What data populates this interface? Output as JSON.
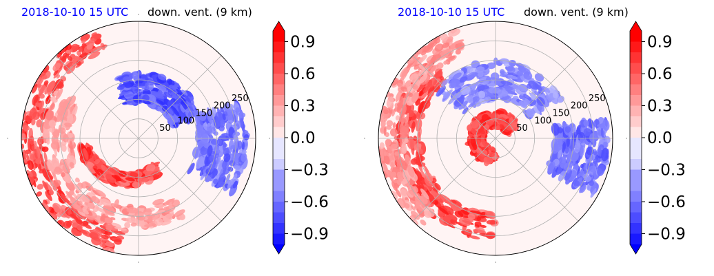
{
  "chart_data": [
    {
      "type": "heatmap",
      "projection": "polar",
      "title_left": "2018-10-10 15 UTC",
      "title_right": "down. vent. (9 km)",
      "radial_ticks": [
        50,
        100,
        150,
        200,
        250
      ],
      "radial_max": 300,
      "colorbar": {
        "min": -1.0,
        "max": 1.0,
        "ticks": [
          0.9,
          0.6,
          0.3,
          0.0,
          -0.3,
          -0.6,
          -0.9
        ],
        "tick_labels": [
          "0.9",
          "0.6",
          "0.3",
          "0.0",
          "−0.3",
          "−0.6",
          "−0.9"
        ],
        "extend": "both",
        "colors": {
          "low": "#0000ff",
          "mid": "#ffffff",
          "high": "#ff0000"
        }
      },
      "pattern": {
        "features": [
          {
            "kind": "spiral",
            "value": 0.95,
            "r0": 90,
            "r1": 140,
            "theta0": 300,
            "theta1": 190
          },
          {
            "kind": "band",
            "value": 0.9,
            "r0": 240,
            "r1": 300,
            "theta0": 110,
            "theta1": 260
          },
          {
            "kind": "band",
            "value": 0.5,
            "r0": 170,
            "r1": 240,
            "theta0": 150,
            "theta1": 300
          },
          {
            "kind": "band",
            "value": -0.85,
            "r0": 90,
            "r1": 170,
            "theta0": 20,
            "theta1": 110
          },
          {
            "kind": "band",
            "value": -0.7,
            "r0": 150,
            "r1": 280,
            "theta0": 330,
            "theta1": 380
          }
        ]
      }
    },
    {
      "type": "heatmap",
      "projection": "polar",
      "title_left": "2018-10-10 15 UTC",
      "title_right": "down. vent. (9 km)",
      "radial_ticks": [
        50,
        100,
        150,
        200,
        250
      ],
      "radial_max": 300,
      "colorbar": {
        "min": -1.0,
        "max": 1.0,
        "ticks": [
          0.9,
          0.6,
          0.3,
          0.0,
          -0.3,
          -0.6,
          -0.9
        ],
        "tick_labels": [
          "0.9",
          "0.6",
          "0.3",
          "0.0",
          "−0.3",
          "−0.6",
          "−0.9"
        ],
        "extend": "both",
        "colors": {
          "low": "#0000ff",
          "mid": "#ffffff",
          "high": "#ff0000"
        }
      },
      "pattern": {
        "features": [
          {
            "kind": "ring",
            "value": 0.95,
            "r0": 30,
            "r1": 70,
            "theta0": 30,
            "theta1": 270
          },
          {
            "kind": "band",
            "value": 0.9,
            "r0": 190,
            "r1": 260,
            "theta0": 130,
            "theta1": 270
          },
          {
            "kind": "band",
            "value": 0.55,
            "r0": 230,
            "r1": 300,
            "theta0": 110,
            "theta1": 230
          },
          {
            "kind": "band",
            "value": -0.6,
            "r0": 100,
            "r1": 200,
            "theta0": 30,
            "theta1": 140
          },
          {
            "kind": "band",
            "value": -0.7,
            "r0": 150,
            "r1": 290,
            "theta0": 330,
            "theta1": 370
          }
        ]
      }
    }
  ]
}
